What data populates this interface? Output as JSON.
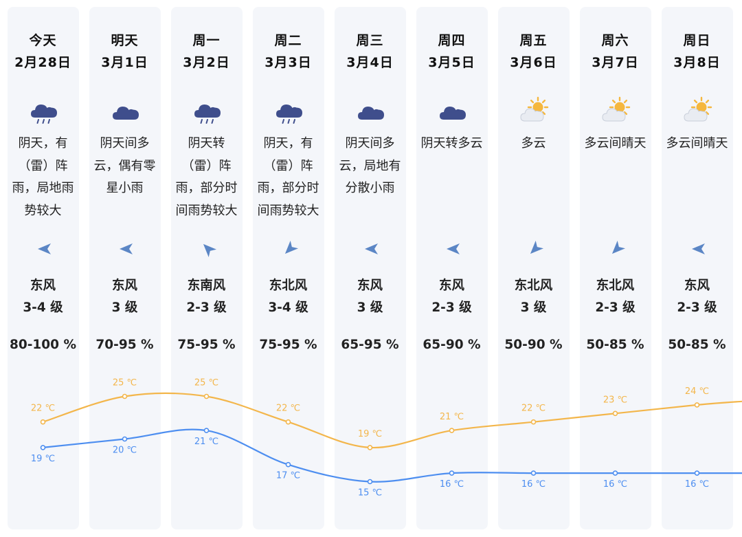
{
  "colors": {
    "high": "#f3b64b",
    "low": "#4d8ef0",
    "column_bg": "#f4f6fa",
    "icon_cloud": "#3f4e8c",
    "icon_sun": "#f5b73e",
    "arrow": "#5b86c5"
  },
  "days": [
    {
      "day": "今天",
      "date": "2月28日",
      "icon": "thunder-rain-icon",
      "desc": [
        "阴天，有",
        "（雷）阵",
        "雨，局地雨",
        "势较大"
      ],
      "wind_icon": "wind-arrow-west-icon",
      "wind_dir": "东风",
      "wind_level": "3-4 级",
      "humidity": "80-100 %"
    },
    {
      "day": "明天",
      "date": "3月1日",
      "icon": "overcast-cloud-icon",
      "desc": [
        "阴天间多",
        "云，偶有零",
        "星小雨"
      ],
      "wind_icon": "wind-arrow-west-icon",
      "wind_dir": "东风",
      "wind_level": "3 级",
      "humidity": "70-95 %"
    },
    {
      "day": "周一",
      "date": "3月2日",
      "icon": "thunder-rain-icon",
      "desc": [
        "阴天转",
        "（雷）阵",
        "雨，部分时",
        "间雨势较大"
      ],
      "wind_icon": "wind-arrow-northwest-icon",
      "wind_dir": "东南风",
      "wind_level": "2-3 级",
      "humidity": "75-95 %"
    },
    {
      "day": "周二",
      "date": "3月3日",
      "icon": "thunder-rain-icon",
      "desc": [
        "阴天，有",
        "（雷）阵",
        "雨，部分时",
        "间雨势较大"
      ],
      "wind_icon": "wind-arrow-southwest-icon",
      "wind_dir": "东北风",
      "wind_level": "3-4 级",
      "humidity": "75-95 %"
    },
    {
      "day": "周三",
      "date": "3月4日",
      "icon": "overcast-cloud-icon",
      "desc": [
        "阴天间多",
        "云，局地有",
        "分散小雨"
      ],
      "wind_icon": "wind-arrow-west-icon",
      "wind_dir": "东风",
      "wind_level": "3 级",
      "humidity": "65-95 %"
    },
    {
      "day": "周四",
      "date": "3月5日",
      "icon": "overcast-cloud-icon",
      "desc": [
        "阴天转多云"
      ],
      "wind_icon": "wind-arrow-west-icon",
      "wind_dir": "东风",
      "wind_level": "2-3 级",
      "humidity": "65-90 %"
    },
    {
      "day": "周五",
      "date": "3月6日",
      "icon": "partly-cloudy-icon",
      "desc": [
        "多云"
      ],
      "wind_icon": "wind-arrow-southwest-icon",
      "wind_dir": "东北风",
      "wind_level": "3 级",
      "humidity": "50-90 %"
    },
    {
      "day": "周六",
      "date": "3月7日",
      "icon": "partly-cloudy-icon",
      "desc": [
        "多云间晴天"
      ],
      "wind_icon": "wind-arrow-southwest-icon",
      "wind_dir": "东北风",
      "wind_level": "2-3 级",
      "humidity": "50-85 %"
    },
    {
      "day": "周日",
      "date": "3月8日",
      "icon": "partly-cloudy-icon",
      "desc": [
        "多云间晴天"
      ],
      "wind_icon": "wind-arrow-west-icon",
      "wind_dir": "东风",
      "wind_level": "2-3 级",
      "humidity": "50-85 %"
    }
  ],
  "chart_data": {
    "type": "line",
    "categories": [
      "今天",
      "明天",
      "周一",
      "周二",
      "周三",
      "周四",
      "周五",
      "周六",
      "周日"
    ],
    "unit": "℃",
    "series": [
      {
        "values": [
          22,
          25,
          25,
          22,
          19,
          21,
          22,
          23,
          24
        ]
      },
      {
        "values": [
          19,
          20,
          21,
          17,
          15,
          16,
          16,
          16,
          16
        ]
      }
    ],
    "ylim": [
      13,
      28
    ],
    "grid": false
  }
}
